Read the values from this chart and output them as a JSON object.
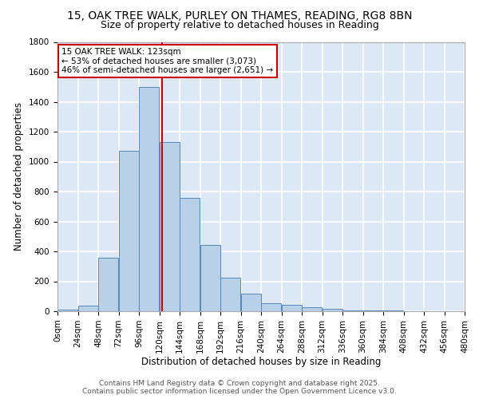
{
  "title_line1": "15, OAK TREE WALK, PURLEY ON THAMES, READING, RG8 8BN",
  "title_line2": "Size of property relative to detached houses in Reading",
  "xlabel": "Distribution of detached houses by size in Reading",
  "ylabel": "Number of detached properties",
  "bin_edges": [
    0,
    24,
    48,
    72,
    96,
    120,
    144,
    168,
    192,
    216,
    240,
    264,
    288,
    312,
    336,
    360,
    384,
    408,
    432,
    456,
    480
  ],
  "bar_heights": [
    10,
    35,
    355,
    1070,
    1500,
    1130,
    755,
    445,
    225,
    115,
    55,
    45,
    25,
    15,
    8,
    4,
    3,
    2,
    1,
    1
  ],
  "bar_color": "#b8d0e8",
  "bar_edge_color": "#5588bb",
  "vline_x": 123,
  "vline_color": "#cc0000",
  "annotation_text": "15 OAK TREE WALK: 123sqm\n← 53% of detached houses are smaller (3,073)\n46% of semi-detached houses are larger (2,651) →",
  "annotation_box_color": "#ffffff",
  "annotation_border_color": "#cc0000",
  "ylim": [
    0,
    1800
  ],
  "xlim": [
    0,
    480
  ],
  "background_color": "#dce8f5",
  "grid_color": "#ffffff",
  "fig_background": "#ffffff",
  "footer_line1": "Contains HM Land Registry data © Crown copyright and database right 2025.",
  "footer_line2": "Contains public sector information licensed under the Open Government Licence v3.0.",
  "tick_labels": [
    "0sqm",
    "24sqm",
    "48sqm",
    "72sqm",
    "96sqm",
    "120sqm",
    "144sqm",
    "168sqm",
    "192sqm",
    "216sqm",
    "240sqm",
    "264sqm",
    "288sqm",
    "312sqm",
    "336sqm",
    "360sqm",
    "384sqm",
    "408sqm",
    "432sqm",
    "456sqm",
    "480sqm"
  ],
  "title_fontsize": 10,
  "subtitle_fontsize": 9,
  "axis_label_fontsize": 8.5,
  "tick_fontsize": 7.5,
  "annotation_fontsize": 7.5,
  "footer_fontsize": 6.5
}
